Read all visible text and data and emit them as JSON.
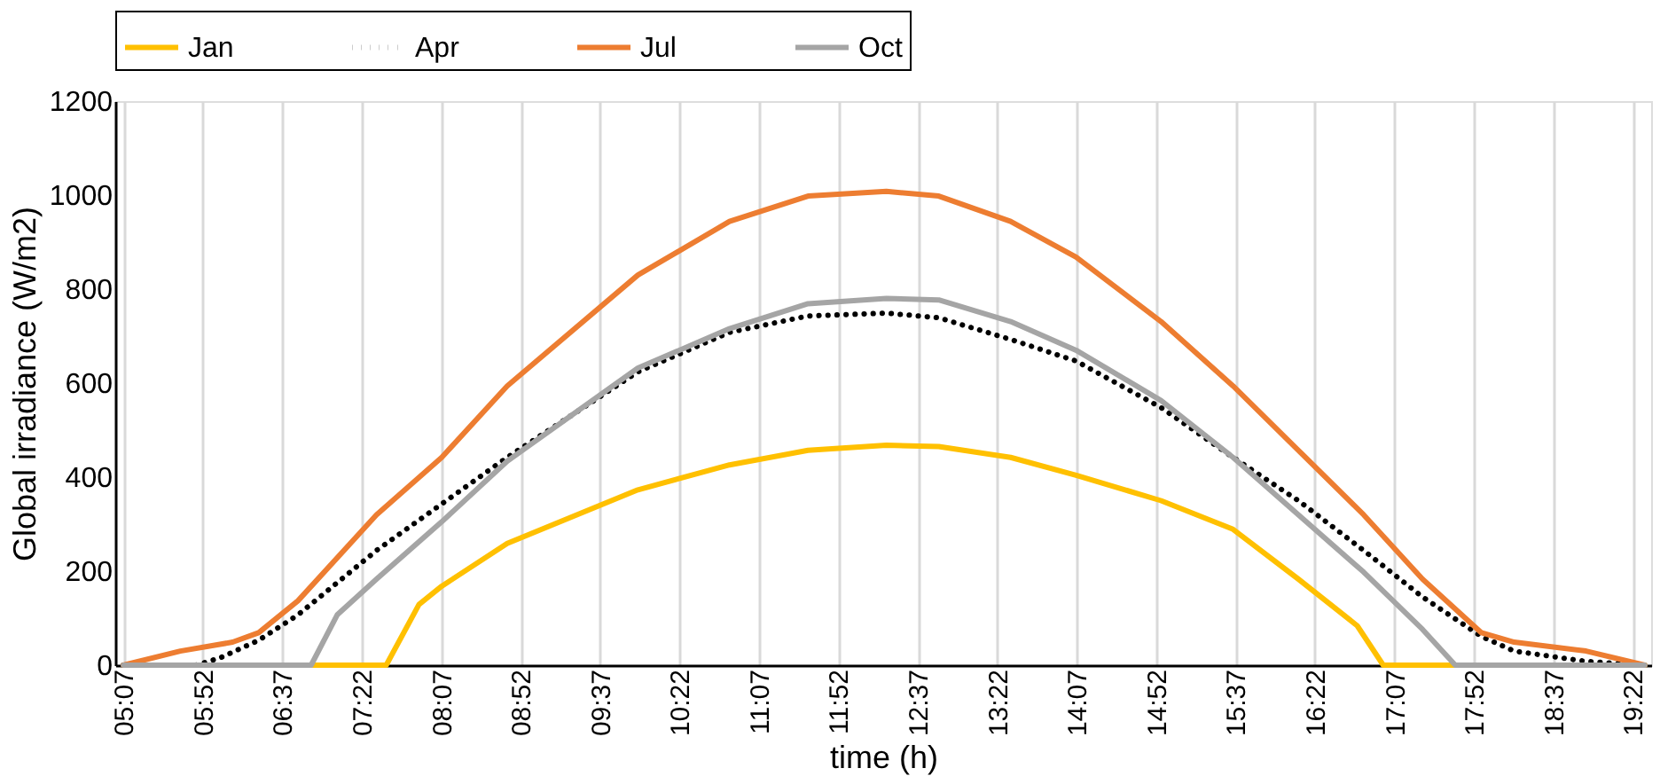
{
  "chart_data": {
    "type": "line",
    "xlabel": "time (h)",
    "ylabel": "Global irradiance (W/m2)",
    "xlim": [
      5.04,
      19.54
    ],
    "ylim": [
      0,
      1200
    ],
    "yticks": [
      0,
      200,
      400,
      600,
      800,
      1000,
      1200
    ],
    "xticks": [
      {
        "value": 5.1167,
        "label": "05:07"
      },
      {
        "value": 5.8667,
        "label": "05:52"
      },
      {
        "value": 6.6167,
        "label": "06:37"
      },
      {
        "value": 7.3667,
        "label": "07:22"
      },
      {
        "value": 8.1167,
        "label": "08:07"
      },
      {
        "value": 8.8667,
        "label": "08:52"
      },
      {
        "value": 9.6167,
        "label": "09:37"
      },
      {
        "value": 10.3667,
        "label": "10:22"
      },
      {
        "value": 11.1167,
        "label": "11:07"
      },
      {
        "value": 11.8667,
        "label": "11:52"
      },
      {
        "value": 12.6167,
        "label": "12:37"
      },
      {
        "value": 13.3667,
        "label": "13:22"
      },
      {
        "value": 14.1167,
        "label": "14:07"
      },
      {
        "value": 14.8667,
        "label": "14:52"
      },
      {
        "value": 15.6167,
        "label": "15:37"
      },
      {
        "value": 16.3667,
        "label": "16:22"
      },
      {
        "value": 17.1167,
        "label": "17:07"
      },
      {
        "value": 17.8667,
        "label": "17:52"
      },
      {
        "value": 18.6167,
        "label": "18:37"
      },
      {
        "value": 19.3667,
        "label": "19:22"
      }
    ],
    "grid": "x",
    "legend": "top",
    "marker": "none",
    "series": [
      {
        "name": "Jan",
        "color": "#ffc000",
        "line_style": "solid",
        "x": [
          5.117,
          7.598,
          7.907,
          8.122,
          8.74,
          9.974,
          10.839,
          11.58,
          12.32,
          12.815,
          13.493,
          14.111,
          14.913,
          15.593,
          16.21,
          16.765,
          17.011,
          19.48
        ],
        "values": [
          0,
          0,
          129,
          168,
          259,
          373,
          426,
          457,
          468,
          465,
          442,
          404,
          350,
          289,
          183,
          84,
          0,
          0
        ]
      },
      {
        "name": "Apr",
        "color": "#000000",
        "line_style": "dotted",
        "x": [
          5.117,
          5.8,
          6.024,
          6.394,
          6.765,
          7.506,
          8.122,
          8.74,
          9.974,
          10.839,
          11.58,
          12.32,
          12.815,
          13.493,
          14.111,
          14.913,
          15.593,
          16.21,
          16.826,
          17.382,
          17.938,
          18.247,
          18.926,
          19.48
        ],
        "values": [
          0,
          0,
          15,
          53,
          107,
          244,
          343,
          442,
          624,
          708,
          743,
          749,
          739,
          693,
          647,
          548,
          442,
          350,
          244,
          145,
          61,
          30,
          8,
          0
        ]
      },
      {
        "name": "Jul",
        "color": "#ed7d31",
        "line_style": "solid",
        "x": [
          5.117,
          5.654,
          6.148,
          6.394,
          6.765,
          7.506,
          8.122,
          8.74,
          9.974,
          10.839,
          11.58,
          12.32,
          12.815,
          13.493,
          14.111,
          14.913,
          15.593,
          16.21,
          16.826,
          17.382,
          17.938,
          18.247,
          18.926,
          19.48
        ],
        "values": [
          0,
          30,
          49,
          69,
          137,
          320,
          442,
          594,
          830,
          944,
          998,
          1008,
          998,
          944,
          868,
          731,
          594,
          457,
          320,
          183,
          69,
          49,
          30,
          0
        ]
      },
      {
        "name": "Oct",
        "color": "#a5a5a5",
        "line_style": "solid",
        "x": [
          5.117,
          6.889,
          7.135,
          7.506,
          8.122,
          8.74,
          9.974,
          10.839,
          11.58,
          12.32,
          12.815,
          13.493,
          14.111,
          14.913,
          15.593,
          16.21,
          16.826,
          17.382,
          17.691,
          19.48
        ],
        "values": [
          0,
          0,
          107,
          183,
          305,
          434,
          632,
          716,
          769,
          780,
          777,
          731,
          670,
          563,
          442,
          320,
          198,
          76,
          0,
          0
        ]
      }
    ]
  }
}
